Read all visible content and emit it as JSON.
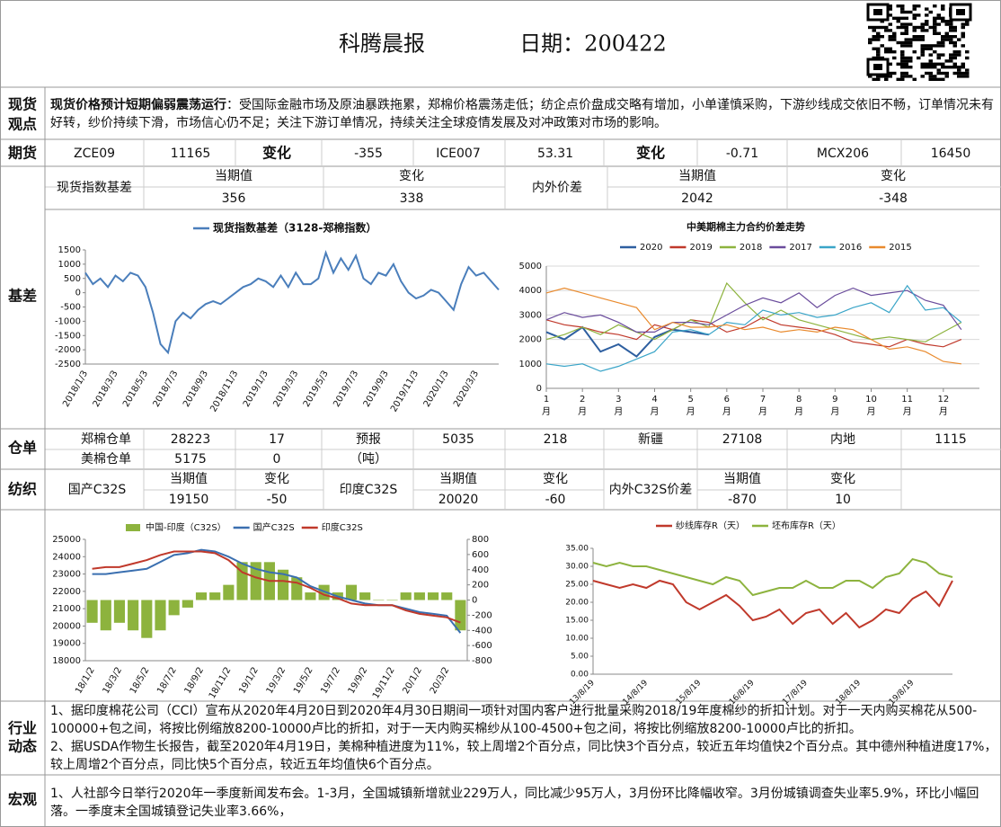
{
  "header": {
    "title": "科腾晨报",
    "date": "日期：200422"
  },
  "labels": {
    "view": [
      "现货",
      "观点"
    ],
    "futures": "期货",
    "basis": "基差",
    "warehouse": "仓单",
    "textile": "纺织",
    "industry": [
      "行业",
      "动态"
    ],
    "macro": "宏观"
  },
  "view": {
    "lead": "现货价格预计短期偏弱震荡运行",
    "text": "：受国际金融市场及原油暴跌拖累，郑棉价格震荡走低；纺企点价盘成交略有增加，小单谨慎采购，下游纱线成交依旧不畅，订单情况未有好转，纱价持续下滑，市场信心仍不足；关注下游订单情况，持续关注全球疫情发展及对冲政策对市场的影响。"
  },
  "futures": [
    "ZCE09",
    11165,
    "变化",
    -355,
    "ICE007",
    53.31,
    "变化",
    -0.71,
    "MCX206",
    16450
  ],
  "basis_table": {
    "label": "现货指数基差",
    "h1": "当期值",
    "h2": "变化",
    "v1": 356,
    "v2": 338,
    "spread_label": "内外价差",
    "h3": "当期值",
    "h4": "变化",
    "v3": 2042,
    "v4": -348
  },
  "warehouse": {
    "row1": [
      "郑棉仓单",
      28223,
      17,
      "预报",
      5035,
      218,
      "新疆",
      27108,
      "内地",
      1115
    ],
    "row2": [
      "美棉仓单",
      5175,
      0,
      "（吨）"
    ]
  },
  "textile": {
    "head": [
      "国产C32S",
      "当期值",
      "变化",
      "印度C32S",
      "当期值",
      "变化",
      "内外C32S价差",
      "当期值",
      "变化"
    ],
    "values": [
      19150,
      -50,
      20020,
      -60,
      -870,
      10
    ]
  },
  "industry": [
    "1、据印度棉花公司（CCI）宣布从2020年4月20日到2020年4月30日期间一项针对国内客户进行批量采购2018/19年度棉纱的折扣计划。对于一天内购买棉花从500-100000+包之间，将按比例缩放8200-10000卢比的折扣，对于一天内购买棉纱从100-4500+包之间，将按比例缩放8200-10000卢比的折扣。",
    "2、据USDA作物生长报告，截至2020年4月19日，美棉种植进度为11%，较上周增2个百分点，同比快3个百分点，较近五年均值快2个百分点。其中德州种植进度17%，较上周增2个百分点，同比快5个百分点，较近五年均值快6个百分点。"
  ],
  "macro": [
    "1、人社部今日举行2020年一季度新闻发布会。1-3月，全国城镇新增就业229万人，同比减少95万人，3月份环比降幅收窄。3月份城镇调查失业率5.9%，环比小幅回落。一季度末全国城镇登记失业率3.66%，"
  ],
  "chart_data": [
    {
      "type": "line",
      "grid": false,
      "categories": [
        "2018/1/3",
        null,
        null,
        null,
        "2018/3/3",
        null,
        null,
        null,
        "2018/5/3",
        null,
        null,
        null,
        "2018/7/3",
        null,
        null,
        null,
        "2018/9/3",
        null,
        null,
        null,
        "2018/11/3",
        null,
        null,
        null,
        "2019/1/3",
        null,
        null,
        null,
        "2019/3/3",
        null,
        null,
        null,
        "2019/5/3",
        null,
        null,
        null,
        "2019/7/3",
        null,
        null,
        null,
        "2019/9/3",
        null,
        null,
        null,
        "2019/11/3",
        null,
        null,
        null,
        "2020/1/3",
        null,
        null,
        null,
        "2020/3/3",
        null,
        null,
        null
      ],
      "series": [
        {
          "name": "现货指数基差（3128-郑棉指数）",
          "color": "#4a7ebb",
          "values": [
            700,
            300,
            500,
            200,
            600,
            400,
            700,
            600,
            200,
            -700,
            -1800,
            -2100,
            -1000,
            -700,
            -900,
            -600,
            -400,
            -300,
            -400,
            -200,
            0,
            200,
            300,
            500,
            400,
            200,
            600,
            200,
            700,
            300,
            300,
            500,
            1400,
            700,
            1200,
            800,
            1300,
            500,
            300,
            700,
            600,
            1000,
            400,
            0,
            -200,
            -100,
            100,
            0,
            -300,
            -600,
            300,
            900,
            600,
            700,
            400,
            100
          ]
        }
      ],
      "ylim": [
        -2500,
        1500
      ],
      "yticks": [
        1500,
        1000,
        500,
        0,
        -500,
        -1000,
        -1500,
        -2000,
        -2500
      ]
    },
    {
      "type": "line",
      "title": "中美期棉主力合约价差走势",
      "grid": true,
      "x": [
        1,
        1.5,
        2,
        2.5,
        3,
        3.5,
        4,
        4.5,
        5,
        5.5,
        6,
        6.5,
        7,
        7.5,
        8,
        8.5,
        9,
        9.5,
        10,
        10.5,
        11,
        11.5,
        12,
        12.5
      ],
      "xlim": [
        1,
        13
      ],
      "xticks": [
        1,
        2,
        3,
        4,
        5,
        6,
        7,
        8,
        9,
        10,
        11,
        12
      ],
      "xtick_unit": "月",
      "ylim": [
        0,
        5000
      ],
      "yticks": [
        0,
        1000,
        2000,
        3000,
        4000,
        5000
      ],
      "series": [
        {
          "name": "2020",
          "color": "#2e5fa0",
          "values": [
            2300,
            2000,
            2500,
            1500,
            1800,
            1300,
            2100,
            2400,
            2300,
            2200,
            null,
            null,
            null,
            null,
            null,
            null,
            null,
            null,
            null,
            null,
            null,
            null,
            null,
            null
          ]
        },
        {
          "name": "2019",
          "color": "#c0392b",
          "values": [
            2800,
            2600,
            2500,
            2300,
            2200,
            2000,
            2600,
            2400,
            2800,
            2700,
            2300,
            2500,
            2900,
            2600,
            2500,
            2400,
            2200,
            1900,
            1800,
            1700,
            2000,
            1800,
            1700,
            2000
          ]
        },
        {
          "name": "2018",
          "color": "#8db33e",
          "values": [
            2000,
            2200,
            2500,
            2200,
            2600,
            2300,
            2000,
            2400,
            2800,
            2500,
            4300,
            3500,
            2800,
            3200,
            2800,
            2600,
            2400,
            2200,
            2000,
            2100,
            2000,
            1900,
            2300,
            2700
          ]
        },
        {
          "name": "2017",
          "color": "#6a4c9c",
          "values": [
            2800,
            3100,
            2900,
            3000,
            2700,
            2300,
            2300,
            2700,
            2700,
            2600,
            3000,
            3400,
            3700,
            3500,
            3900,
            3300,
            3800,
            4100,
            3800,
            3900,
            4000,
            3600,
            3400,
            2400
          ]
        },
        {
          "name": "2016",
          "color": "#3aa5c8",
          "values": [
            1000,
            900,
            1000,
            700,
            900,
            1200,
            1500,
            2300,
            2400,
            2200,
            2700,
            2600,
            3200,
            3000,
            3100,
            2900,
            3000,
            3300,
            3500,
            3100,
            4200,
            3200,
            3300,
            2700
          ]
        },
        {
          "name": "2015",
          "color": "#e98a2d",
          "values": [
            3900,
            4100,
            3900,
            3700,
            3500,
            3300,
            2400,
            2700,
            2500,
            2500,
            2600,
            2400,
            2500,
            2300,
            2400,
            2300,
            2500,
            2400,
            2000,
            1600,
            1700,
            1500,
            1100,
            1000
          ]
        }
      ]
    },
    {
      "type": "combo",
      "grid": false,
      "categories": [
        "18/1/2",
        null,
        "18/3/2",
        null,
        "18/5/2",
        null,
        "18/7/2",
        null,
        "18/9/2",
        null,
        "18/11/2",
        null,
        "19/1/2",
        null,
        "19/3/2",
        null,
        "19/5/2",
        null,
        "19/7/2",
        null,
        "19/9/2",
        null,
        "19/11/2",
        null,
        "20/1/2",
        null,
        "20/3/2",
        null
      ],
      "ylim": [
        18000,
        25000
      ],
      "yticks": [
        25000,
        24000,
        23000,
        22000,
        21000,
        20000,
        19000,
        18000
      ],
      "y2lim": [
        -800,
        800
      ],
      "y2ticks": [
        800,
        600,
        400,
        200,
        0,
        -200,
        -400,
        -600,
        -800
      ],
      "series": [
        {
          "name": "中国-印度（C32S）",
          "type": "bar",
          "axis": "y2",
          "color": "#8db33e",
          "values": [
            -300,
            -400,
            -300,
            -400,
            -500,
            -400,
            -200,
            -100,
            100,
            100,
            200,
            500,
            500,
            500,
            400,
            300,
            100,
            200,
            100,
            200,
            100,
            0,
            0,
            100,
            100,
            100,
            100,
            -400
          ]
        },
        {
          "name": "国产C32S",
          "type": "line",
          "color": "#3a6fb0",
          "values": [
            23000,
            23000,
            23100,
            23200,
            23300,
            23700,
            24100,
            24200,
            24400,
            24300,
            24000,
            23600,
            23300,
            23100,
            23000,
            22800,
            22300,
            22000,
            21700,
            21500,
            21300,
            21200,
            21200,
            21000,
            20800,
            20700,
            20600,
            19600
          ]
        },
        {
          "name": "印度C32S",
          "type": "line",
          "color": "#c0392b",
          "values": [
            23300,
            23400,
            23400,
            23600,
            23800,
            24100,
            24300,
            24300,
            24300,
            24200,
            23800,
            23100,
            22800,
            22600,
            22600,
            22500,
            22200,
            21800,
            21600,
            21300,
            21200,
            21200,
            21200,
            20900,
            20700,
            20600,
            20500,
            20200
          ]
        }
      ]
    },
    {
      "type": "line",
      "grid": false,
      "categories": [
        "13/8/19",
        null,
        null,
        null,
        "14/8/19",
        null,
        null,
        null,
        "15/8/19",
        null,
        null,
        null,
        "16/8/19",
        null,
        null,
        null,
        "17/8/19",
        null,
        null,
        null,
        "18/8/19",
        null,
        null,
        null,
        "19/8/19",
        null,
        null,
        null
      ],
      "ylim": [
        0,
        35
      ],
      "yticks": [
        {
          "value": 35,
          "label": "35.00"
        },
        {
          "value": 30,
          "label": "30.00"
        },
        {
          "value": 25,
          "label": "25.00"
        },
        {
          "value": 20,
          "label": "20.00"
        },
        {
          "value": 15,
          "label": "15.00"
        },
        {
          "value": 10,
          "label": "10.00"
        },
        {
          "value": 5,
          "label": "5.00"
        },
        {
          "value": 0,
          "label": "0.00"
        }
      ],
      "series": [
        {
          "name": "纱线库存R（天）",
          "color": "#c0392b",
          "values": [
            26,
            25,
            24,
            25,
            24,
            26,
            25,
            20,
            18,
            20,
            22,
            19,
            15,
            16,
            18,
            14,
            17,
            18,
            14,
            17,
            13,
            15,
            18,
            17,
            21,
            23,
            19,
            26
          ]
        },
        {
          "name": "坯布库存R（天）",
          "color": "#8db33e",
          "values": [
            31,
            30,
            31,
            30,
            30,
            29,
            28,
            27,
            26,
            25,
            27,
            26,
            22,
            23,
            24,
            24,
            26,
            24,
            24,
            26,
            26,
            24,
            27,
            28,
            32,
            31,
            28,
            27
          ]
        }
      ]
    }
  ]
}
